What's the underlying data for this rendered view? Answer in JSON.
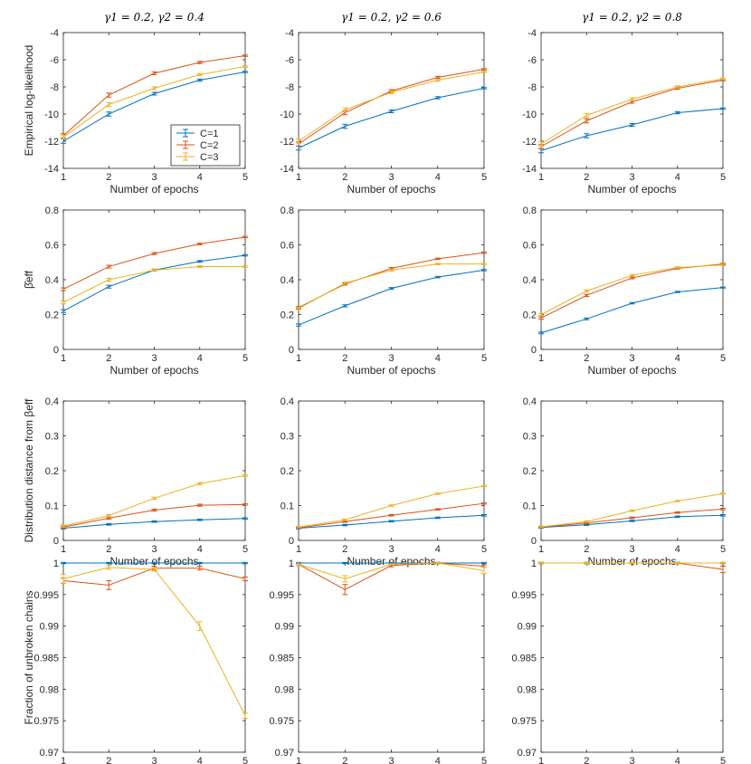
{
  "figure": {
    "col_titles": [
      "γ1 = 0.2, γ2 = 0.4",
      "γ1 = 0.2, γ2 = 0.6",
      "γ1 = 0.2, γ2 = 0.8"
    ],
    "row_ylabels": [
      "Empirical log-likelihood",
      "β̂eff",
      "Distribution distance from βeff",
      "Fraction of unbroken chains"
    ],
    "xlabel": "Number of epochs",
    "legend": [
      "C=1",
      "C=2",
      "C=3"
    ],
    "colors": [
      "#0072BD",
      "#D95319",
      "#EDB120"
    ]
  },
  "chart_data": [
    {
      "type": "line",
      "row": 0,
      "col": 0,
      "title": "γ1 = 0.2, γ2 = 0.4",
      "xlabel": "Number of epochs",
      "ylabel": "Empirical log-likelihood",
      "x": [
        1,
        2,
        3,
        4,
        5
      ],
      "xlim": [
        1,
        5
      ],
      "ylim": [
        -14,
        -4
      ],
      "xticks": [
        1,
        2,
        3,
        4,
        5
      ],
      "yticks": [
        -14,
        -12,
        -10,
        -8,
        -6,
        -4
      ],
      "ytick_labels": [
        "-14",
        "-12",
        "-10",
        "-8",
        "-6",
        "-4"
      ],
      "legend_position": "lower-right",
      "series": [
        {
          "name": "C=1",
          "values": [
            -12.0,
            -10.0,
            -8.5,
            -7.5,
            -6.9
          ],
          "err": [
            0.15,
            0.15,
            0.1,
            0.08,
            0.05
          ]
        },
        {
          "name": "C=2",
          "values": [
            -11.6,
            -8.6,
            -7.0,
            -6.2,
            -5.7
          ],
          "err": [
            0.15,
            0.15,
            0.1,
            0.08,
            0.05
          ]
        },
        {
          "name": "C=3",
          "values": [
            -11.7,
            -9.3,
            -8.1,
            -7.1,
            -6.5
          ],
          "err": [
            0.15,
            0.15,
            0.1,
            0.08,
            0.05
          ]
        }
      ]
    },
    {
      "type": "line",
      "row": 0,
      "col": 1,
      "title": "γ1 = 0.2, γ2 = 0.6",
      "xlabel": "Number of epochs",
      "ylabel": "",
      "x": [
        1,
        2,
        3,
        4,
        5
      ],
      "xlim": [
        1,
        5
      ],
      "ylim": [
        -14,
        -4
      ],
      "xticks": [
        1,
        2,
        3,
        4,
        5
      ],
      "yticks": [
        -14,
        -12,
        -10,
        -8,
        -6,
        -4
      ],
      "ytick_labels": [
        "-14",
        "-12",
        "-10",
        "-8",
        "-6",
        "-4"
      ],
      "series": [
        {
          "name": "C=1",
          "values": [
            -12.5,
            -10.9,
            -9.8,
            -8.8,
            -8.1
          ],
          "err": [
            0.15,
            0.15,
            0.1,
            0.08,
            0.05
          ]
        },
        {
          "name": "C=2",
          "values": [
            -12.2,
            -9.9,
            -8.3,
            -7.3,
            -6.7
          ],
          "err": [
            0.15,
            0.15,
            0.1,
            0.08,
            0.05
          ]
        },
        {
          "name": "C=3",
          "values": [
            -12.0,
            -9.7,
            -8.4,
            -7.5,
            -6.9
          ],
          "err": [
            0.15,
            0.15,
            0.1,
            0.08,
            0.05
          ]
        }
      ]
    },
    {
      "type": "line",
      "row": 0,
      "col": 2,
      "title": "γ1 = 0.2, γ2 = 0.8",
      "xlabel": "Number of epochs",
      "ylabel": "",
      "x": [
        1,
        2,
        3,
        4,
        5
      ],
      "xlim": [
        1,
        5
      ],
      "ylim": [
        -14,
        -4
      ],
      "xticks": [
        1,
        2,
        3,
        4,
        5
      ],
      "yticks": [
        -14,
        -12,
        -10,
        -8,
        -6,
        -4
      ],
      "ytick_labels": [
        "-14",
        "-12",
        "-10",
        "-8",
        "-6",
        "-4"
      ],
      "series": [
        {
          "name": "C=1",
          "values": [
            -12.7,
            -11.6,
            -10.8,
            -9.9,
            -9.6
          ],
          "err": [
            0.15,
            0.15,
            0.1,
            0.08,
            0.05
          ]
        },
        {
          "name": "C=2",
          "values": [
            -12.4,
            -10.5,
            -9.1,
            -8.1,
            -7.5
          ],
          "err": [
            0.15,
            0.15,
            0.1,
            0.08,
            0.05
          ]
        },
        {
          "name": "C=3",
          "values": [
            -12.2,
            -10.1,
            -8.9,
            -8.0,
            -7.4
          ],
          "err": [
            0.15,
            0.15,
            0.1,
            0.08,
            0.05
          ]
        }
      ]
    },
    {
      "type": "line",
      "row": 1,
      "col": 0,
      "xlabel": "Number of epochs",
      "ylabel": "β̂eff",
      "x": [
        1,
        2,
        3,
        4,
        5
      ],
      "xlim": [
        1,
        5
      ],
      "ylim": [
        0,
        0.8
      ],
      "xticks": [
        1,
        2,
        3,
        4,
        5
      ],
      "yticks": [
        0,
        0.2,
        0.4,
        0.6,
        0.8
      ],
      "ytick_labels": [
        "0",
        "0.2",
        "0.4",
        "0.6",
        "0.8"
      ],
      "series": [
        {
          "name": "C=1",
          "values": [
            0.22,
            0.36,
            0.455,
            0.505,
            0.54
          ],
          "err": [
            0.008,
            0.008,
            0.006,
            0.005,
            0.004
          ]
        },
        {
          "name": "C=2",
          "values": [
            0.345,
            0.475,
            0.55,
            0.605,
            0.645
          ],
          "err": [
            0.008,
            0.008,
            0.006,
            0.005,
            0.004
          ]
        },
        {
          "name": "C=3",
          "values": [
            0.27,
            0.4,
            0.455,
            0.475,
            0.475
          ],
          "err": [
            0.008,
            0.008,
            0.006,
            0.005,
            0.004
          ]
        }
      ]
    },
    {
      "type": "line",
      "row": 1,
      "col": 1,
      "xlabel": "Number of epochs",
      "ylabel": "",
      "x": [
        1,
        2,
        3,
        4,
        5
      ],
      "xlim": [
        1,
        5
      ],
      "ylim": [
        0,
        0.8
      ],
      "xticks": [
        1,
        2,
        3,
        4,
        5
      ],
      "yticks": [
        0,
        0.2,
        0.4,
        0.6,
        0.8
      ],
      "ytick_labels": [
        "0",
        "0.2",
        "0.4",
        "0.6",
        "0.8"
      ],
      "series": [
        {
          "name": "C=1",
          "values": [
            0.14,
            0.25,
            0.35,
            0.415,
            0.455
          ],
          "err": [
            0.006,
            0.006,
            0.005,
            0.004,
            0.004
          ]
        },
        {
          "name": "C=2",
          "values": [
            0.24,
            0.375,
            0.465,
            0.52,
            0.555
          ],
          "err": [
            0.006,
            0.006,
            0.005,
            0.004,
            0.004
          ]
        },
        {
          "name": "C=3",
          "values": [
            0.235,
            0.38,
            0.455,
            0.49,
            0.49
          ],
          "err": [
            0.006,
            0.006,
            0.005,
            0.004,
            0.004
          ]
        }
      ]
    },
    {
      "type": "line",
      "row": 1,
      "col": 2,
      "xlabel": "Number of epochs",
      "ylabel": "",
      "x": [
        1,
        2,
        3,
        4,
        5
      ],
      "xlim": [
        1,
        5
      ],
      "ylim": [
        0,
        0.8
      ],
      "xticks": [
        1,
        2,
        3,
        4,
        5
      ],
      "yticks": [
        0,
        0.2,
        0.4,
        0.6,
        0.8
      ],
      "ytick_labels": [
        "0",
        "0.2",
        "0.4",
        "0.6",
        "0.8"
      ],
      "series": [
        {
          "name": "C=1",
          "values": [
            0.095,
            0.175,
            0.265,
            0.33,
            0.355
          ],
          "err": [
            0.005,
            0.005,
            0.004,
            0.004,
            0.003
          ]
        },
        {
          "name": "C=2",
          "values": [
            0.18,
            0.31,
            0.41,
            0.465,
            0.49
          ],
          "err": [
            0.006,
            0.006,
            0.005,
            0.004,
            0.004
          ]
        },
        {
          "name": "C=3",
          "values": [
            0.2,
            0.335,
            0.425,
            0.47,
            0.485
          ],
          "err": [
            0.006,
            0.006,
            0.005,
            0.004,
            0.004
          ]
        }
      ]
    },
    {
      "type": "line",
      "row": 2,
      "col": 0,
      "xlabel": "Number of epochs",
      "ylabel": "Distribution distance from βeff",
      "x": [
        1,
        2,
        3,
        4,
        5
      ],
      "xlim": [
        1,
        5
      ],
      "ylim": [
        0,
        0.4
      ],
      "xticks": [
        1,
        2,
        3,
        4,
        5
      ],
      "yticks": [
        0,
        0.1,
        0.2,
        0.3,
        0.4
      ],
      "ytick_labels": [
        "0",
        "0.1",
        "0.2",
        "0.3",
        "0.4"
      ],
      "series": [
        {
          "name": "C=1",
          "values": [
            0.035,
            0.046,
            0.054,
            0.059,
            0.063
          ],
          "err": [
            0.002,
            0.002,
            0.002,
            0.002,
            0.002
          ]
        },
        {
          "name": "C=2",
          "values": [
            0.038,
            0.064,
            0.087,
            0.101,
            0.103
          ],
          "err": [
            0.003,
            0.003,
            0.003,
            0.003,
            0.002
          ]
        },
        {
          "name": "C=3",
          "values": [
            0.041,
            0.071,
            0.121,
            0.163,
            0.186
          ],
          "err": [
            0.003,
            0.003,
            0.003,
            0.003,
            0.002
          ]
        }
      ]
    },
    {
      "type": "line",
      "row": 2,
      "col": 1,
      "xlabel": "Number of epochs",
      "ylabel": "",
      "x": [
        1,
        2,
        3,
        4,
        5
      ],
      "xlim": [
        1,
        5
      ],
      "ylim": [
        0,
        0.4
      ],
      "xticks": [
        1,
        2,
        3,
        4,
        5
      ],
      "yticks": [
        0,
        0.1,
        0.2,
        0.3,
        0.4
      ],
      "ytick_labels": [
        "0",
        "0.1",
        "0.2",
        "0.3",
        "0.4"
      ],
      "series": [
        {
          "name": "C=1",
          "values": [
            0.035,
            0.044,
            0.055,
            0.065,
            0.072
          ],
          "err": [
            0.002,
            0.002,
            0.002,
            0.002,
            0.002
          ]
        },
        {
          "name": "C=2",
          "values": [
            0.036,
            0.054,
            0.072,
            0.089,
            0.106
          ],
          "err": [
            0.002,
            0.002,
            0.002,
            0.002,
            0.002
          ]
        },
        {
          "name": "C=3",
          "values": [
            0.038,
            0.059,
            0.1,
            0.134,
            0.156
          ],
          "err": [
            0.002,
            0.002,
            0.002,
            0.002,
            0.002
          ]
        }
      ]
    },
    {
      "type": "line",
      "row": 2,
      "col": 2,
      "xlabel": "Number of epochs",
      "ylabel": "",
      "x": [
        1,
        2,
        3,
        4,
        5
      ],
      "xlim": [
        1,
        5
      ],
      "ylim": [
        0,
        0.4
      ],
      "xticks": [
        1,
        2,
        3,
        4,
        5
      ],
      "yticks": [
        0,
        0.1,
        0.2,
        0.3,
        0.4
      ],
      "ytick_labels": [
        "0",
        "0.1",
        "0.2",
        "0.3",
        "0.4"
      ],
      "series": [
        {
          "name": "C=1",
          "values": [
            0.037,
            0.045,
            0.056,
            0.068,
            0.072
          ],
          "err": [
            0.002,
            0.002,
            0.002,
            0.002,
            0.002
          ]
        },
        {
          "name": "C=2",
          "values": [
            0.038,
            0.05,
            0.065,
            0.08,
            0.09
          ],
          "err": [
            0.002,
            0.002,
            0.002,
            0.002,
            0.002
          ]
        },
        {
          "name": "C=3",
          "values": [
            0.039,
            0.054,
            0.085,
            0.113,
            0.134
          ],
          "err": [
            0.002,
            0.002,
            0.002,
            0.002,
            0.002
          ]
        }
      ]
    },
    {
      "type": "line",
      "row": 3,
      "col": 0,
      "xlabel": "Number of epochs",
      "ylabel": "Fraction of unbroken chains",
      "x": [
        1,
        2,
        3,
        4,
        5
      ],
      "xlim": [
        1,
        5
      ],
      "ylim": [
        0.97,
        1
      ],
      "xticks": [
        1,
        2,
        3,
        4,
        5
      ],
      "yticks": [
        0.97,
        0.975,
        0.98,
        0.985,
        0.99,
        0.995,
        1
      ],
      "ytick_labels": [
        "0.97",
        "0.975",
        "0.98",
        "0.985",
        "0.99",
        "0.995",
        "1"
      ],
      "series": [
        {
          "name": "C=1",
          "values": [
            1.0,
            1.0,
            1.0,
            1.0,
            1.0
          ],
          "err": [
            0.0001,
            0.0001,
            0.0001,
            0.0001,
            0.0001
          ]
        },
        {
          "name": "C=2",
          "values": [
            0.9972,
            0.9965,
            0.9992,
            0.9992,
            0.9975
          ],
          "err": [
            0.0004,
            0.0007,
            0.0003,
            0.0003,
            0.0003
          ]
        },
        {
          "name": "C=3",
          "values": [
            0.9975,
            0.9993,
            0.999,
            0.99,
            0.9758
          ],
          "err": [
            0.0007,
            0.0003,
            0.0003,
            0.0007,
            0.0004
          ]
        }
      ]
    },
    {
      "type": "line",
      "row": 3,
      "col": 1,
      "xlabel": "Number of epochs",
      "ylabel": "",
      "x": [
        1,
        2,
        3,
        4,
        5
      ],
      "xlim": [
        1,
        5
      ],
      "ylim": [
        0.97,
        1
      ],
      "xticks": [
        1,
        2,
        3,
        4,
        5
      ],
      "yticks": [
        0.97,
        0.975,
        0.98,
        0.985,
        0.99,
        0.995,
        1
      ],
      "ytick_labels": [
        "0.97",
        "0.975",
        "0.98",
        "0.985",
        "0.99",
        "0.995",
        "1"
      ],
      "series": [
        {
          "name": "C=1",
          "values": [
            1.0,
            1.0,
            1.0,
            1.0,
            1.0
          ],
          "err": [
            0.0001,
            0.0001,
            0.0001,
            0.0001,
            0.0001
          ]
        },
        {
          "name": "C=2",
          "values": [
            0.9998,
            0.9958,
            0.9996,
            1.0,
            0.9995
          ],
          "err": [
            0.0002,
            0.0008,
            0.0002,
            0.0001,
            0.0002
          ]
        },
        {
          "name": "C=3",
          "values": [
            0.9998,
            0.9975,
            0.9998,
            1.0,
            0.9988
          ],
          "err": [
            0.0002,
            0.0005,
            0.0001,
            0.0001,
            0.0005
          ]
        }
      ]
    },
    {
      "type": "line",
      "row": 3,
      "col": 2,
      "xlabel": "Number of epochs",
      "ylabel": "",
      "x": [
        1,
        2,
        3,
        4,
        5
      ],
      "xlim": [
        1,
        5
      ],
      "ylim": [
        0.97,
        1
      ],
      "xticks": [
        1,
        2,
        3,
        4,
        5
      ],
      "yticks": [
        0.97,
        0.975,
        0.98,
        0.985,
        0.99,
        0.995,
        1
      ],
      "ytick_labels": [
        "0.97",
        "0.975",
        "0.98",
        "0.985",
        "0.99",
        "0.995",
        "1"
      ],
      "series": [
        {
          "name": "C=1",
          "values": [
            1.0,
            1.0,
            1.0,
            1.0,
            1.0
          ],
          "err": [
            0.0001,
            0.0001,
            0.0001,
            0.0001,
            0.0001
          ]
        },
        {
          "name": "C=2",
          "values": [
            1.0,
            1.0,
            1.0,
            1.0,
            0.999
          ],
          "err": [
            0.0001,
            0.0001,
            0.0001,
            0.0001,
            0.0005
          ]
        },
        {
          "name": "C=3",
          "values": [
            1.0,
            1.0,
            1.0,
            1.0,
            1.0
          ],
          "err": [
            0.0001,
            0.0001,
            0.0001,
            0.0001,
            0.0001
          ]
        }
      ]
    }
  ]
}
